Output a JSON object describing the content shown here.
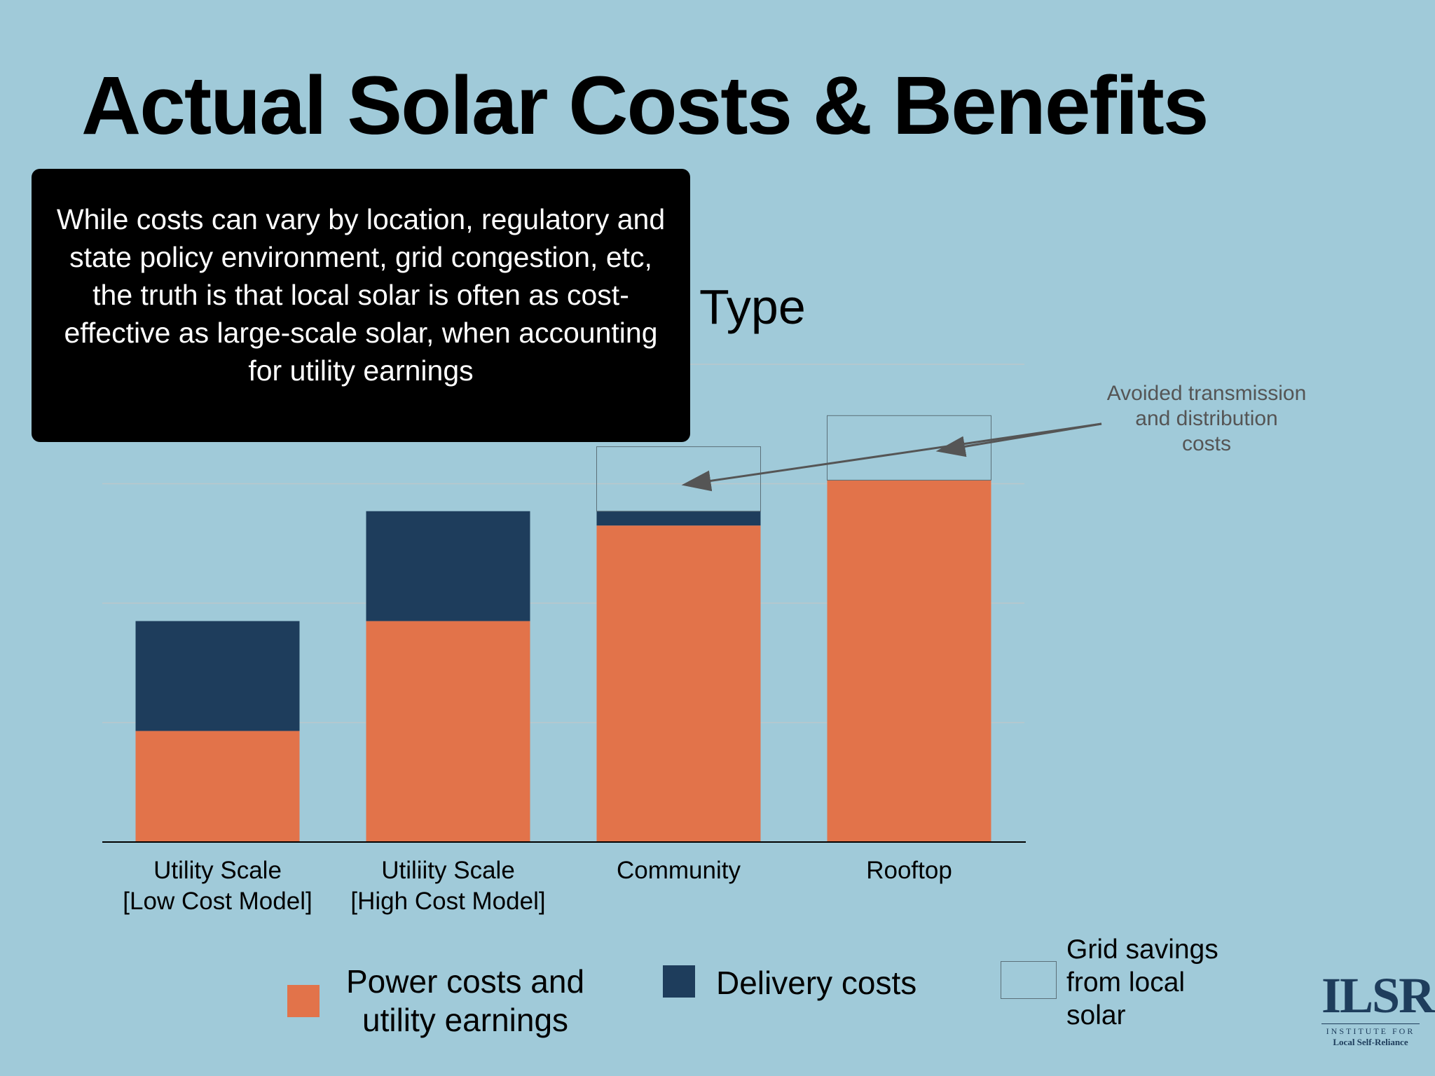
{
  "slide": {
    "title": "Actual Solar Costs & Benefits",
    "callout_text": "While costs can vary by location, regulatory and state policy environment, grid congestion, etc, the truth is that local solar is often as cost-effective as large-scale solar, when accounting for utility earnings",
    "logo": {
      "mark": "ILSR",
      "line1": "INSTITUTE FOR",
      "line2": "Local Self-Reliance"
    }
  },
  "chart_data": {
    "type": "bar",
    "stacked": true,
    "title_visible_fragment": "Type",
    "categories": [
      "Utility Scale\n[Low Cost Model]",
      "Utiliity Scale\n[High Cost Model]",
      "Community",
      "Rooftop"
    ],
    "series": [
      {
        "name": "Power costs and utility earnings",
        "color": "#e2734a",
        "values": [
          0.93,
          1.85,
          2.65,
          3.03
        ]
      },
      {
        "name": "Delivery costs",
        "color": "#1e3d5c",
        "values": [
          0.92,
          0.92,
          0.12,
          0
        ]
      },
      {
        "name": "Grid savings from local solar",
        "color": "transparent",
        "values": [
          0,
          0,
          0.54,
          0.54
        ]
      }
    ],
    "ylim": [
      0,
      4
    ],
    "grid": true,
    "annotation": "Avoided transmission\nand distribution\ncosts",
    "legend": [
      {
        "label": "Power costs and\nutility earnings",
        "color": "#e2734a"
      },
      {
        "label": "Delivery costs",
        "color": "#1e3d5c"
      },
      {
        "label": "Grid savings\nfrom local\nsolar",
        "color": "transparent"
      }
    ]
  }
}
